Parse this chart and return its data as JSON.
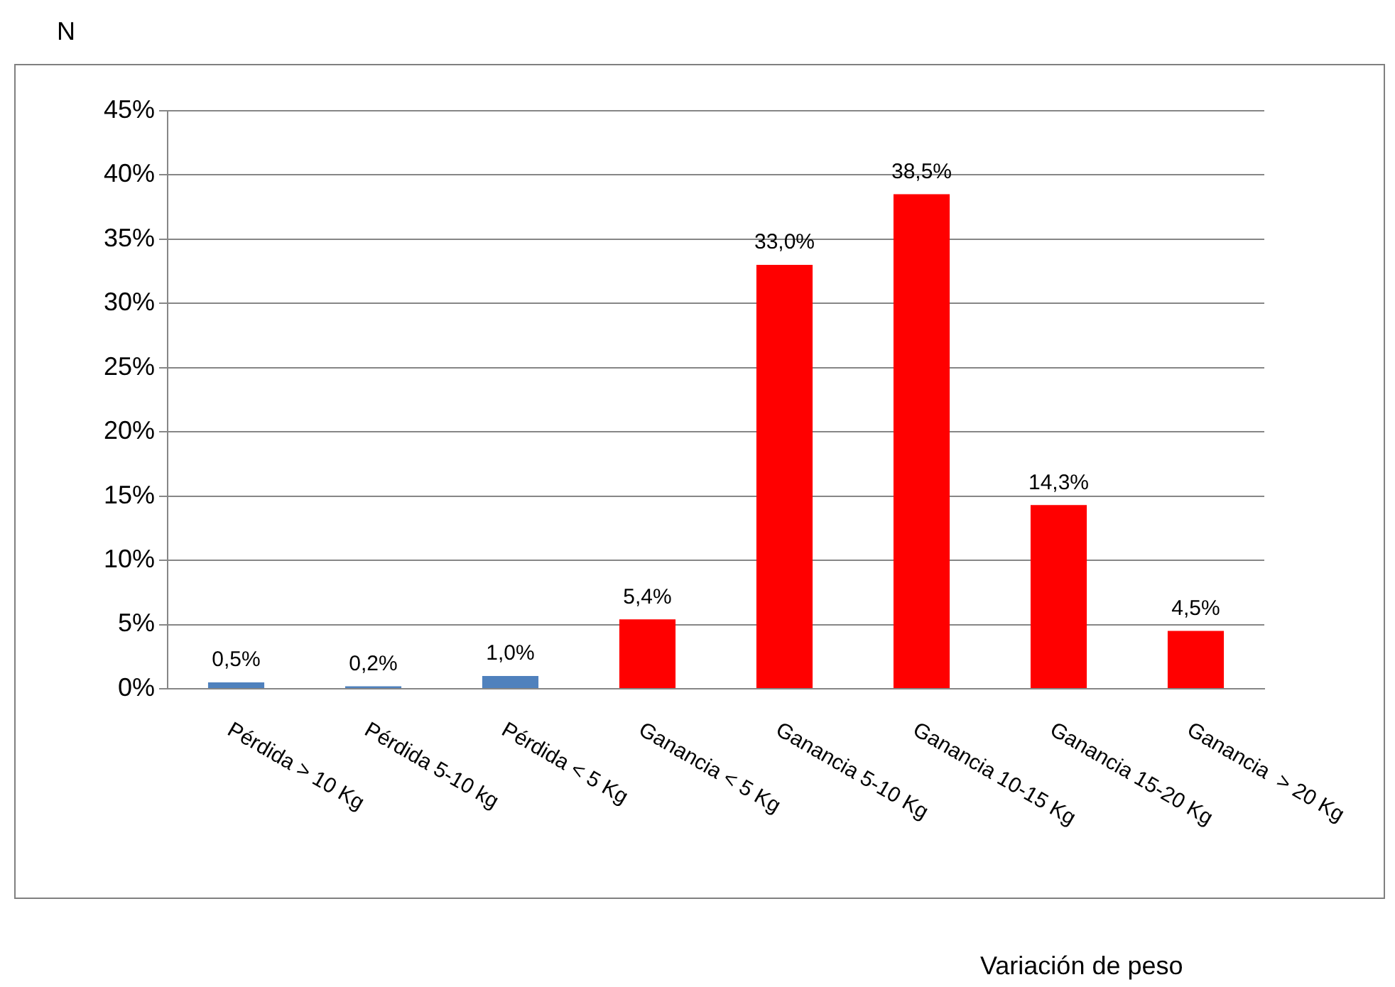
{
  "chart_data": {
    "type": "bar",
    "ylabel": "N",
    "xlabel": "Variación de peso",
    "categories": [
      "Pérdida > 10 Kg",
      "Pérdida 5-10 kg",
      "Pérdida < 5 Kg",
      "Ganancia < 5 Kg",
      "Ganancia 5-10 Kg",
      "Ganancia 10-15 Kg",
      "Ganancia 15-20 Kg",
      "Ganancia  > 20 Kg"
    ],
    "values": [
      0.5,
      0.2,
      1.0,
      5.4,
      33.0,
      38.5,
      14.3,
      4.5
    ],
    "value_labels": [
      "0,5%",
      "0,2%",
      "1,0%",
      "5,4%",
      "33,0%",
      "38,5%",
      "14,3%",
      "4,5%"
    ],
    "colors": [
      "#4f81bd",
      "#4f81bd",
      "#4f81bd",
      "#ff0000",
      "#ff0000",
      "#ff0000",
      "#ff0000",
      "#ff0000"
    ],
    "ylim": [
      0,
      45
    ],
    "yticks": [
      {
        "value": 0,
        "label": "0%"
      },
      {
        "value": 5,
        "label": "5%"
      },
      {
        "value": 10,
        "label": "10%"
      },
      {
        "value": 15,
        "label": "15%"
      },
      {
        "value": 20,
        "label": "20%"
      },
      {
        "value": 25,
        "label": "25%"
      },
      {
        "value": 30,
        "label": "30%"
      },
      {
        "value": 35,
        "label": "35%"
      },
      {
        "value": 40,
        "label": "40%"
      },
      {
        "value": 45,
        "label": "45%"
      }
    ],
    "grid": "y",
    "legend": false
  }
}
